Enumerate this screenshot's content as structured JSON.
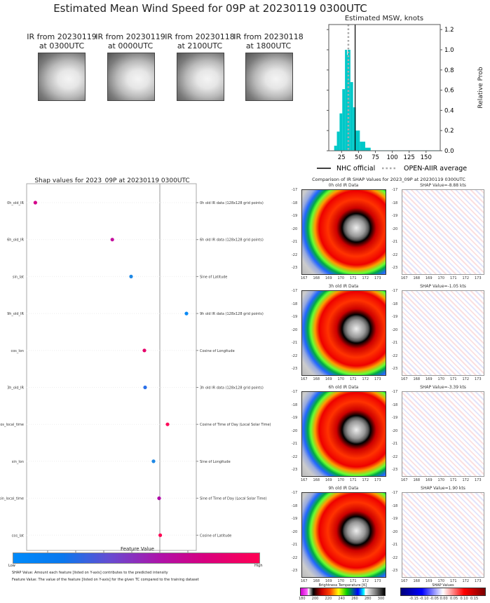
{
  "title": "Estimated Mean Wind Speed for 09P at 20230119 0300UTC",
  "thumbnails": [
    {
      "line1": "IR from 20230119",
      "line2": "at 0300UTC"
    },
    {
      "line1": "IR from 20230119",
      "line2": "at 0000UTC"
    },
    {
      "line1": "IR from 20230118",
      "line2": "at 2100UTC"
    },
    {
      "line1": "IR from 20230118",
      "line2": "at 1800UTC"
    }
  ],
  "chart_data": [
    {
      "type": "bar",
      "title": "Estimated MSW, knots",
      "ylabel": "Relative Prob",
      "xlim": [
        6,
        171
      ],
      "ylim": [
        0,
        1.25
      ],
      "xticks": [
        25,
        50,
        75,
        100,
        125,
        150
      ],
      "yticks": [
        "0.0",
        "0.2",
        "0.4",
        "0.6",
        "0.8",
        "1.0",
        "1.2"
      ],
      "bins": [
        [
          14,
          18,
          0.05
        ],
        [
          18,
          22,
          0.19
        ],
        [
          22,
          26,
          0.37
        ],
        [
          26,
          30,
          0.61
        ],
        [
          30,
          33,
          1.0
        ],
        [
          33,
          34,
          0.95
        ],
        [
          34,
          38,
          1.0
        ],
        [
          38,
          42,
          0.68
        ],
        [
          42,
          46,
          0.43
        ],
        [
          46,
          52,
          0.2
        ],
        [
          52,
          60,
          0.09
        ],
        [
          60,
          68,
          0.03
        ],
        [
          68,
          170,
          0.004
        ]
      ],
      "bar_color": "#00c8c8",
      "nhc_official": 45,
      "openaiir_average": 35,
      "legend": {
        "nhc": "NHC official",
        "avg": "OPEN-AIIR average"
      }
    },
    {
      "type": "scatter",
      "title": "Shap values for 2023_09P at 20230119 0300UTC",
      "xlabel": "SHAP Value [kts]",
      "xlim": [
        -9.5,
        2.6
      ],
      "xticks": [
        -8,
        -6,
        -4,
        -2,
        0,
        2
      ],
      "features": [
        {
          "name": "0h_old_IR",
          "desc": "0h old IR data (128x128 grid points)",
          "value": -8.88,
          "color": "#d4008a"
        },
        {
          "name": "6h_old_IR",
          "desc": "6h old IR data (128x128 grid points)",
          "value": -3.39,
          "color": "#c4109e"
        },
        {
          "name": "sin_lat",
          "desc": "Sine of Latitude",
          "value": -2.05,
          "color": "#1e88e5"
        },
        {
          "name": "9h_old_IR",
          "desc": "9h old IR data (128x128 grid points)",
          "value": 1.9,
          "color": "#0a8af5"
        },
        {
          "name": "cos_lon",
          "desc": "Cosine of Longitude",
          "value": -1.1,
          "color": "#e6006a"
        },
        {
          "name": "3h_old_IR",
          "desc": "3h old IR data (128x128 grid points)",
          "value": -1.05,
          "color": "#2a70ea"
        },
        {
          "name": "cos_local_time",
          "desc": "Cosine of Time of Day (Local Solar Time)",
          "value": 0.55,
          "color": "#ff0a5a"
        },
        {
          "name": "sin_lon",
          "desc": "Sine of Longitude",
          "value": -0.45,
          "color": "#1e88e5"
        },
        {
          "name": "sin_local_time",
          "desc": "Sine of Time of Day (Local Solar Time)",
          "value": -0.05,
          "color": "#b000a8"
        },
        {
          "name": "cos_lat",
          "desc": "Cosine of Latitude",
          "value": 0.03,
          "color": "#ff0052"
        }
      ],
      "colorbar": {
        "title": "Feature Value",
        "low": "Low",
        "high": "High"
      },
      "notes": [
        "SHAP Value: Amount each feature [listed on Y-axis] contributes to the predicted intensity",
        "Feature Value: The value of the feature [listed on Y-axis] for the given TC compared to the training dataset"
      ]
    }
  ],
  "comparison": {
    "title": "Comparison of IR SHAP Values for 2023_09P at 20230119 0300UTC",
    "rows": [
      {
        "ir_title": "0h old IR Data",
        "shap_title": "SHAP Value=-8.88 kts"
      },
      {
        "ir_title": "3h old IR Data",
        "shap_title": "SHAP Value=-1.05 kts"
      },
      {
        "ir_title": "6h old IR Data",
        "shap_title": "SHAP Value=-3.39 kts"
      },
      {
        "ir_title": "9h old IR Data",
        "shap_title": "SHAP Value=1.90 kts"
      }
    ],
    "yticks": [
      "-17",
      "-18",
      "-19",
      "-20",
      "-21",
      "-22",
      "-23"
    ],
    "xticks": [
      "167",
      "168",
      "169",
      "170",
      "171",
      "172",
      "173"
    ],
    "bt_colorbar": {
      "title": "Brightness Temperature [K]",
      "ticks": [
        "180",
        "200",
        "220",
        "240",
        "260",
        "280",
        "300"
      ]
    },
    "shap_colorbar": {
      "title": "SHAP Values",
      "ticks": [
        "-0.15",
        "-0.10",
        "-0.05",
        "0.00",
        "0.05",
        "0.10",
        "0.15"
      ]
    }
  }
}
